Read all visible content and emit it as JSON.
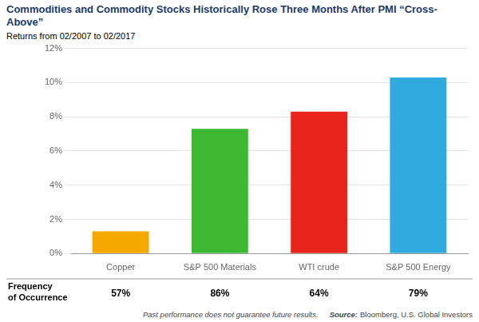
{
  "chart_data": {
    "type": "bar",
    "title": "Commodities and Commodity Stocks Historically Rose Three Months After PMI “Cross-Above”",
    "subtitle": "Returns from 02/2007 to 02/2017",
    "categories": [
      "Copper",
      "S&P 500 Materials",
      "WTI crude",
      "S&P 500 Energy"
    ],
    "values": [
      1.3,
      7.3,
      8.3,
      10.3
    ],
    "colors": [
      "#F5A800",
      "#3CB930",
      "#E8231A",
      "#30AADF"
    ],
    "ylim": [
      0,
      12
    ],
    "yticks": [
      {
        "value": 0,
        "label": "0%"
      },
      {
        "value": 2,
        "label": "2%"
      },
      {
        "value": 4,
        "label": "4%"
      },
      {
        "value": 6,
        "label": "6%"
      },
      {
        "value": 8,
        "label": "8%"
      },
      {
        "value": 10,
        "label": "10%"
      },
      {
        "value": 12,
        "label": "12%"
      }
    ],
    "grid": true,
    "frequency_label": "Frequency\nof Occurrence",
    "frequencies": [
      {
        "value": 57,
        "label": "57%"
      },
      {
        "value": 86,
        "label": "86%"
      },
      {
        "value": 64,
        "label": "64%"
      },
      {
        "value": 79,
        "label": "79%"
      }
    ],
    "footer": "Past performance does not guarantee future results.",
    "source_label": "Source:",
    "source_text": "Bloomberg, U.S. Global Investors"
  }
}
